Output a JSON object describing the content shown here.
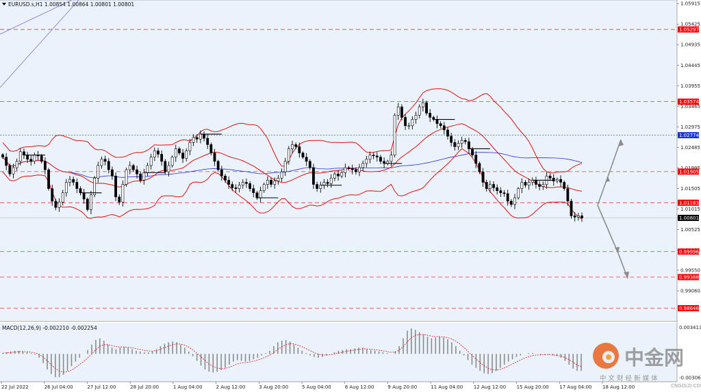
{
  "chart_data": [
    {
      "type": "candlestick",
      "symbol_line": "EURUSD.s,H1  1.00854 1.00864 1.00801 1.00801",
      "ylim": [
        0.9836,
        1.06
      ],
      "y_ticks": [
        "1.05915",
        "1.05425",
        "1.04935",
        "1.04445",
        "1.03955",
        "1.03465",
        "1.02975",
        "1.02485",
        "1.01995",
        "1.01505",
        "1.01015",
        "1.00525",
        "1.00035",
        "0.99550",
        "0.99060"
      ],
      "x_labels": [
        "22 Jul 2022",
        "26 Jul 04:00",
        "27 Jul 12:00",
        "28 Jul 20:00",
        "1 Aug 04:00",
        "2 Aug 12:00",
        "3 Aug 20:00",
        "5 Aug 04:00",
        "8 Aug 12:00",
        "9 Aug 20:00",
        "11 Aug 04:00",
        "12 Aug 12:00",
        "15 Aug 20:00",
        "17 Aug 04:00",
        "18 Aug 12:00"
      ],
      "current_price": "1.00801",
      "price_levels": [
        {
          "value": 1.05297,
          "label": "1.05297",
          "color": "#ff0000"
        },
        {
          "value": 1.03574,
          "label": "1.03574",
          "color": "#ff0000"
        },
        {
          "value": 1.02774,
          "label": "1.02774",
          "color": "#1a35d6"
        },
        {
          "value": 1.01905,
          "label": "1.01905",
          "color": "#ff0000"
        },
        {
          "value": 1.01163,
          "label": "1.01163",
          "color": "#ff0000"
        },
        {
          "value": 0.99996,
          "label": "0.99996",
          "color": "#ff0000"
        },
        {
          "value": 0.99388,
          "label": "0.99388",
          "color": "#ff0000"
        },
        {
          "value": 0.98646,
          "label": "0.98646",
          "color": "#ff0000"
        }
      ],
      "close_series": [
        1.0225,
        1.0205,
        1.0185,
        1.02,
        1.0215,
        1.0238,
        1.023,
        1.022,
        1.0215,
        1.023,
        1.0228,
        1.0215,
        1.0195,
        1.015,
        1.012,
        1.0105,
        1.0118,
        1.014,
        1.0165,
        1.0172,
        1.0165,
        1.015,
        1.014,
        1.0125,
        1.01,
        1.0135,
        1.0175,
        1.0205,
        1.022,
        1.0215,
        1.0195,
        1.018,
        1.013,
        1.0118,
        1.016,
        1.0195,
        1.0205,
        1.0195,
        1.0185,
        1.017,
        1.0188,
        1.0205,
        1.0225,
        1.024,
        1.0232,
        1.0215,
        1.019,
        1.0205,
        1.0225,
        1.0245,
        1.0235,
        1.0222,
        1.024,
        1.026,
        1.0272,
        1.0268,
        1.028,
        1.027,
        1.0255,
        1.0235,
        1.0215,
        1.0195,
        1.018,
        1.017,
        1.016,
        1.0152,
        1.015,
        1.0158,
        1.0165,
        1.0162,
        1.015,
        1.014,
        1.0128,
        1.0145,
        1.016,
        1.017,
        1.016,
        1.0168,
        1.0175,
        1.019,
        1.0215,
        1.0245,
        1.0255,
        1.025,
        1.0235,
        1.0225,
        1.0215,
        1.02,
        1.016,
        1.015,
        1.0158,
        1.0165,
        1.0162,
        1.0175,
        1.0185,
        1.018,
        1.0188,
        1.02,
        1.0198,
        1.0195,
        1.019,
        1.02,
        1.021,
        1.022,
        1.023,
        1.0228,
        1.0225,
        1.0215,
        1.021,
        1.0215,
        1.023,
        1.0325,
        1.0345,
        1.032,
        1.03,
        1.03,
        1.0315,
        1.0325,
        1.0345,
        1.0355,
        1.033,
        1.032,
        1.0315,
        1.0305,
        1.03,
        1.029,
        1.0275,
        1.026,
        1.025,
        1.0258,
        1.0265,
        1.0262,
        1.0245,
        1.023,
        1.021,
        1.019,
        1.0165,
        1.015,
        1.016,
        1.0152,
        1.0145,
        1.014,
        1.0138,
        1.012,
        1.0112,
        1.0128,
        1.015,
        1.0165,
        1.0158,
        1.0165,
        1.017,
        1.016,
        1.0155,
        1.016,
        1.018,
        1.0175,
        1.0168,
        1.0172,
        1.0165,
        1.015,
        1.012,
        1.0085,
        1.0082,
        1.0085,
        1.008
      ],
      "bollinger_bands": true,
      "moving_average": true,
      "forecast_arrows": true
    },
    {
      "type": "histogram",
      "indicator": "MACD(12,26,9) -0.002210 -0.002254",
      "y_ticks": [
        "0.003413",
        "-0.003065"
      ],
      "ylim": [
        -0.0036,
        0.004
      ],
      "histogram": [
        0.0001,
        0.0002,
        0.0003,
        0.0004,
        0.0004,
        0.0003,
        0.0002,
        0.0001,
        -0.0001,
        -0.0005,
        -0.0012,
        -0.002,
        -0.0026,
        -0.003,
        -0.003,
        -0.0027,
        -0.0022,
        -0.0016,
        -0.001,
        -0.0005,
        0.0,
        0.0005,
        0.0012,
        0.0018,
        0.002,
        0.0017,
        0.0012,
        0.0008,
        0.0006,
        0.0008,
        0.0009,
        0.0008,
        0.0006,
        0.0004,
        0.0003,
        0.0002,
        0.0002,
        0.0003,
        0.0006,
        0.001,
        0.0013,
        0.0015,
        0.0016,
        0.0015,
        0.0012,
        0.0008,
        0.0003,
        -0.0003,
        -0.0009,
        -0.0015,
        -0.002,
        -0.0023,
        -0.0024,
        -0.0023,
        -0.0021,
        -0.0018,
        -0.0014,
        -0.001,
        -0.0008,
        -0.0009,
        -0.001,
        -0.0009,
        -0.0007,
        -0.0005,
        -0.0002,
        0.0001,
        0.0004,
        0.001,
        0.0015,
        0.0017,
        0.0018,
        0.0016,
        0.0012,
        0.0008,
        0.0004,
        0.0001,
        -0.0002,
        -0.0004,
        -0.0005,
        -0.0004,
        -0.0002,
        0.0,
        0.0002,
        0.0004,
        0.0005,
        0.0006,
        0.0006,
        0.0007,
        0.0008,
        0.0008,
        0.0006,
        0.0005,
        0.0004,
        0.0003,
        0.0002,
        0.0001,
        0.0,
        0.0003,
        0.001,
        0.002,
        0.003,
        0.0033,
        0.0031,
        0.0028,
        0.0025,
        0.0022,
        0.002,
        0.0021,
        0.0022,
        0.0021,
        0.0019,
        0.0015,
        0.001,
        0.0004,
        -0.0002,
        -0.0008,
        -0.0014,
        -0.0018,
        -0.0022,
        -0.0025,
        -0.0026,
        -0.0025,
        -0.0022,
        -0.0018,
        -0.0014,
        -0.001,
        -0.0007,
        -0.0004,
        -0.0002,
        0.0,
        0.0001,
        0.0001,
        0.0,
        -0.0001,
        -0.0001,
        -0.0001,
        -0.0002,
        -0.0003,
        -0.0005,
        -0.0009,
        -0.0014,
        -0.0019,
        -0.0022,
        -0.0022
      ]
    }
  ],
  "watermark": {
    "cn_name": "中金网",
    "tagline": "中 文 财 经 新 媒 体",
    "site": "CNGOLD.COM"
  }
}
